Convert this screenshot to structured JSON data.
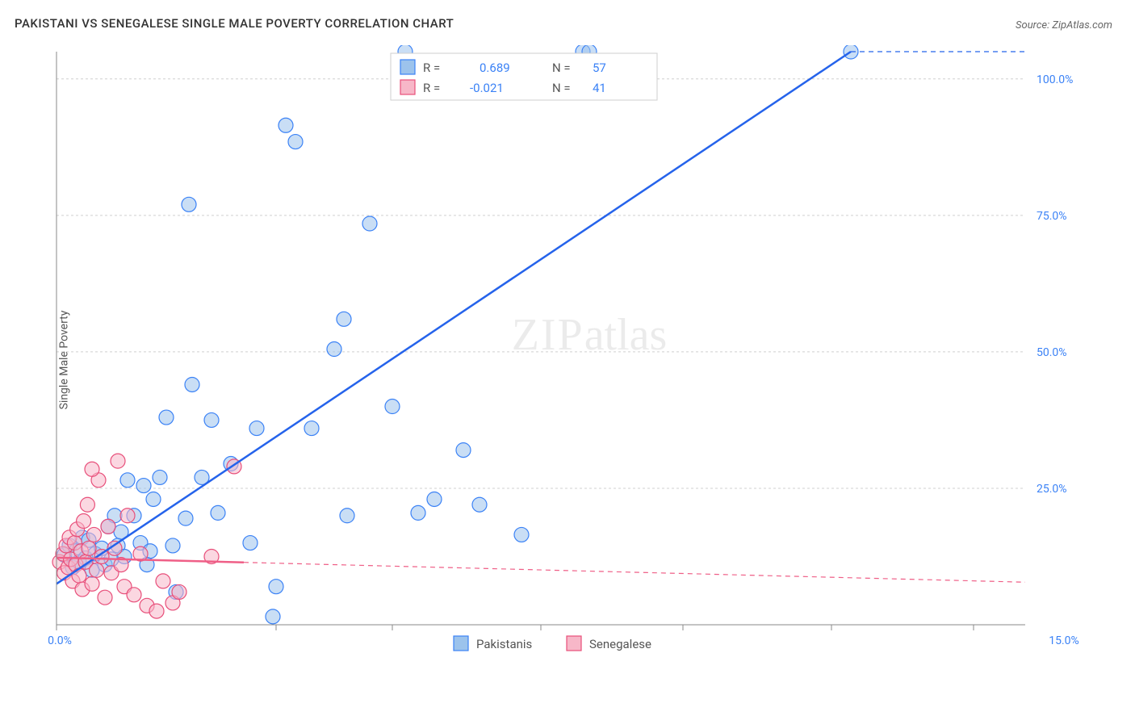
{
  "title": "PAKISTANI VS SENEGALESE SINGLE MALE POVERTY CORRELATION CHART",
  "source": "Source: ZipAtlas.com",
  "ylabel": "Single Male Poverty",
  "watermark": {
    "left": "ZIP",
    "right": "atlas"
  },
  "chart": {
    "type": "scatter",
    "xlim": [
      0,
      15
    ],
    "ylim": [
      0,
      105
    ],
    "xticks": [
      0,
      3.4,
      5.2,
      7.5,
      9.7,
      12.0,
      14.2
    ],
    "xtick_labels": [
      "0.0%",
      "",
      "",
      "",
      "",
      "",
      "15.0%"
    ],
    "yticks": [
      25,
      50,
      75,
      100
    ],
    "ytick_labels": [
      "25.0%",
      "50.0%",
      "75.0%",
      "100.0%"
    ],
    "background_color": "#ffffff",
    "grid_color": "#d0d0d0",
    "marker_radius": 9,
    "series": [
      {
        "name": "Pakistanis",
        "color_fill": "#9cc3ec",
        "color_stroke": "#3b82f6",
        "regression": {
          "slope": 8.0,
          "intercept": 7.5,
          "x_solid_max": 12.3
        },
        "R": "0.689",
        "N": "57",
        "points": [
          [
            0.12,
            12.8
          ],
          [
            0.2,
            14.5
          ],
          [
            0.25,
            10.5
          ],
          [
            0.3,
            13.5
          ],
          [
            0.35,
            11.5
          ],
          [
            0.4,
            16.0
          ],
          [
            0.45,
            12.2
          ],
          [
            0.5,
            15.5
          ],
          [
            0.55,
            10.0
          ],
          [
            0.6,
            13.0
          ],
          [
            0.7,
            14.0
          ],
          [
            0.75,
            11.0
          ],
          [
            0.8,
            18.0
          ],
          [
            0.85,
            12.0
          ],
          [
            0.9,
            20.0
          ],
          [
            0.95,
            14.5
          ],
          [
            1.0,
            17.0
          ],
          [
            1.05,
            12.5
          ],
          [
            1.1,
            26.5
          ],
          [
            1.2,
            20.0
          ],
          [
            1.3,
            15.0
          ],
          [
            1.35,
            25.5
          ],
          [
            1.45,
            13.5
          ],
          [
            1.5,
            23.0
          ],
          [
            1.6,
            27.0
          ],
          [
            1.7,
            38.0
          ],
          [
            1.8,
            14.5
          ],
          [
            1.85,
            6.0
          ],
          [
            2.0,
            19.5
          ],
          [
            2.05,
            77.0
          ],
          [
            2.1,
            44.0
          ],
          [
            2.25,
            27.0
          ],
          [
            2.4,
            37.5
          ],
          [
            2.5,
            20.5
          ],
          [
            2.7,
            29.5
          ],
          [
            3.0,
            15.0
          ],
          [
            3.1,
            36.0
          ],
          [
            3.35,
            1.5
          ],
          [
            3.55,
            91.5
          ],
          [
            3.7,
            88.5
          ],
          [
            3.95,
            36.0
          ],
          [
            4.3,
            50.5
          ],
          [
            4.45,
            56.0
          ],
          [
            4.5,
            20.0
          ],
          [
            4.85,
            73.5
          ],
          [
            5.2,
            40.0
          ],
          [
            5.4,
            105.0
          ],
          [
            5.6,
            20.5
          ],
          [
            5.85,
            23.0
          ],
          [
            6.3,
            32.0
          ],
          [
            6.55,
            22.0
          ],
          [
            7.2,
            16.5
          ],
          [
            8.15,
            105.0
          ],
          [
            8.25,
            105.0
          ],
          [
            12.3,
            105.0
          ],
          [
            3.4,
            7.0
          ],
          [
            1.4,
            11.0
          ]
        ]
      },
      {
        "name": "Senegalese",
        "color_fill": "#f7b7c8",
        "color_stroke": "#e84f7a",
        "regression": {
          "slope": -0.3,
          "intercept": 12.3,
          "x_solid_max": 2.9
        },
        "R": "-0.021",
        "N": "41",
        "points": [
          [
            0.05,
            11.5
          ],
          [
            0.1,
            13.0
          ],
          [
            0.12,
            9.5
          ],
          [
            0.15,
            14.5
          ],
          [
            0.18,
            10.5
          ],
          [
            0.2,
            16.0
          ],
          [
            0.22,
            12.0
          ],
          [
            0.25,
            8.0
          ],
          [
            0.28,
            15.0
          ],
          [
            0.3,
            11.0
          ],
          [
            0.32,
            17.5
          ],
          [
            0.35,
            9.0
          ],
          [
            0.38,
            13.5
          ],
          [
            0.4,
            6.5
          ],
          [
            0.42,
            19.0
          ],
          [
            0.45,
            11.5
          ],
          [
            0.48,
            22.0
          ],
          [
            0.5,
            14.0
          ],
          [
            0.55,
            7.5
          ],
          [
            0.58,
            16.5
          ],
          [
            0.62,
            10.0
          ],
          [
            0.65,
            26.5
          ],
          [
            0.7,
            12.5
          ],
          [
            0.75,
            5.0
          ],
          [
            0.8,
            18.0
          ],
          [
            0.85,
            9.5
          ],
          [
            0.9,
            14.0
          ],
          [
            0.95,
            30.0
          ],
          [
            1.0,
            11.0
          ],
          [
            1.05,
            7.0
          ],
          [
            1.1,
            20.0
          ],
          [
            1.2,
            5.5
          ],
          [
            1.3,
            13.0
          ],
          [
            1.4,
            3.5
          ],
          [
            1.55,
            2.5
          ],
          [
            1.65,
            8.0
          ],
          [
            1.8,
            4.0
          ],
          [
            1.9,
            6.0
          ],
          [
            2.4,
            12.5
          ],
          [
            2.75,
            29.0
          ],
          [
            0.55,
            28.5
          ]
        ]
      }
    ],
    "stats_box": {
      "x_center_rel": 0.45,
      "y_top_rel": 0.0
    },
    "legend": {
      "items": [
        "Pakistanis",
        "Senegalese"
      ]
    }
  }
}
